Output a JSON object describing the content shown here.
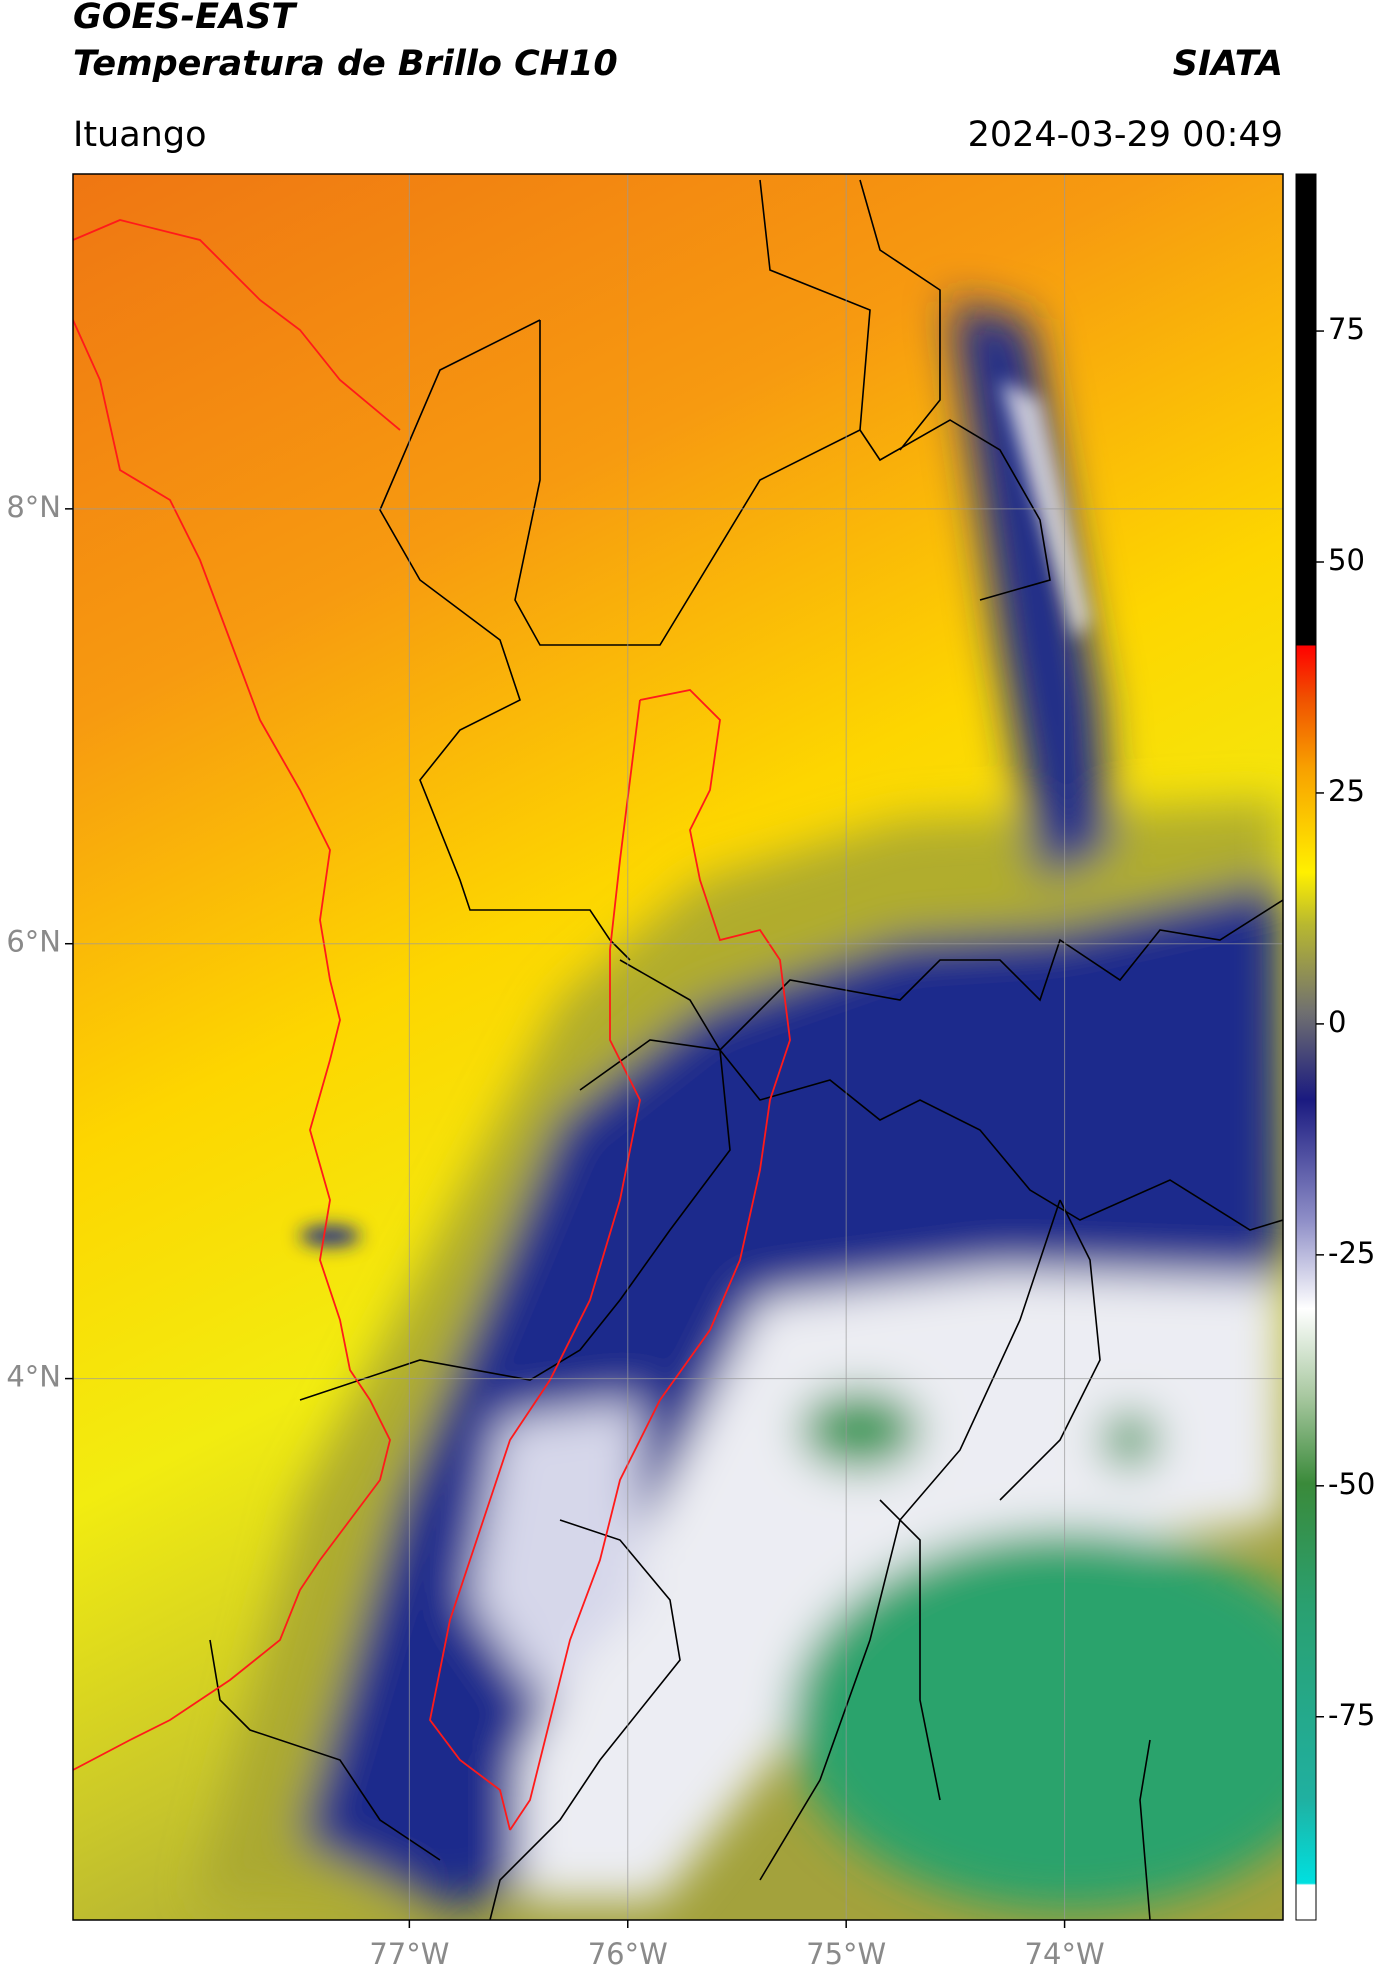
{
  "header": {
    "satellite": "GOES-EAST",
    "product": "Temperatura de Brillo CH10",
    "source": "SIATA",
    "location": "Ituango",
    "timestamp": "2024-03-29 00:49"
  },
  "map": {
    "latlim": [
      1.51,
      9.54
    ],
    "lonlim": [
      -78.54,
      -73.0
    ],
    "latticks": [
      {
        "value": 4,
        "label": "4°N"
      },
      {
        "value": 6,
        "label": "6°N"
      },
      {
        "value": 8,
        "label": "8°N"
      }
    ],
    "lonticks": [
      {
        "value": -77,
        "label": "77°W"
      },
      {
        "value": -76,
        "label": "76°W"
      },
      {
        "value": -75,
        "label": "75°W"
      },
      {
        "value": -74,
        "label": "74°W"
      }
    ],
    "grid": true
  },
  "colorbar": {
    "lim": [
      -97,
      92
    ],
    "ticks": [
      -75,
      -50,
      -25,
      0,
      25,
      50,
      75
    ]
  }
}
